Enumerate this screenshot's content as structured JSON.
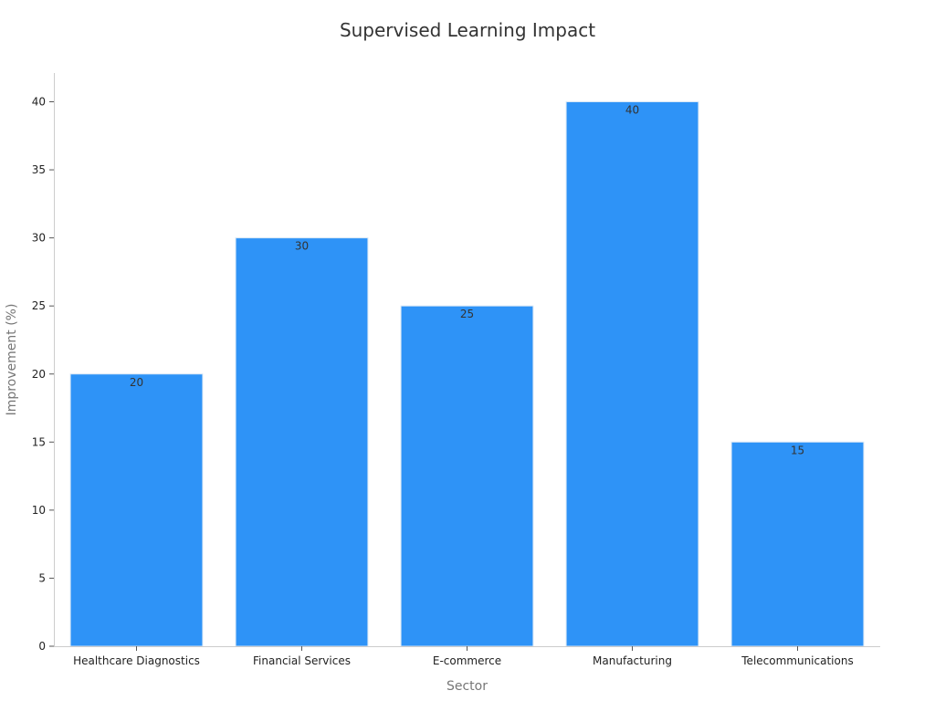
{
  "chart_data": {
    "type": "bar",
    "title": "Supervised Learning Impact",
    "xlabel": "Sector",
    "ylabel": "Improvement (%)",
    "categories": [
      "Healthcare Diagnostics",
      "Financial Services",
      "E-commerce",
      "Manufacturing",
      "Telecommunications"
    ],
    "values": [
      20,
      30,
      25,
      40,
      15
    ],
    "data_labels": [
      "20",
      "30",
      "25",
      "40",
      "15"
    ],
    "ylim": [
      0,
      42
    ],
    "yticks": [
      0,
      5,
      10,
      15,
      20,
      25,
      30,
      35,
      40
    ],
    "grid": false,
    "legend": "none",
    "bar_color": "#2e93f7",
    "bar_edge_color": "#d6e6f5"
  }
}
